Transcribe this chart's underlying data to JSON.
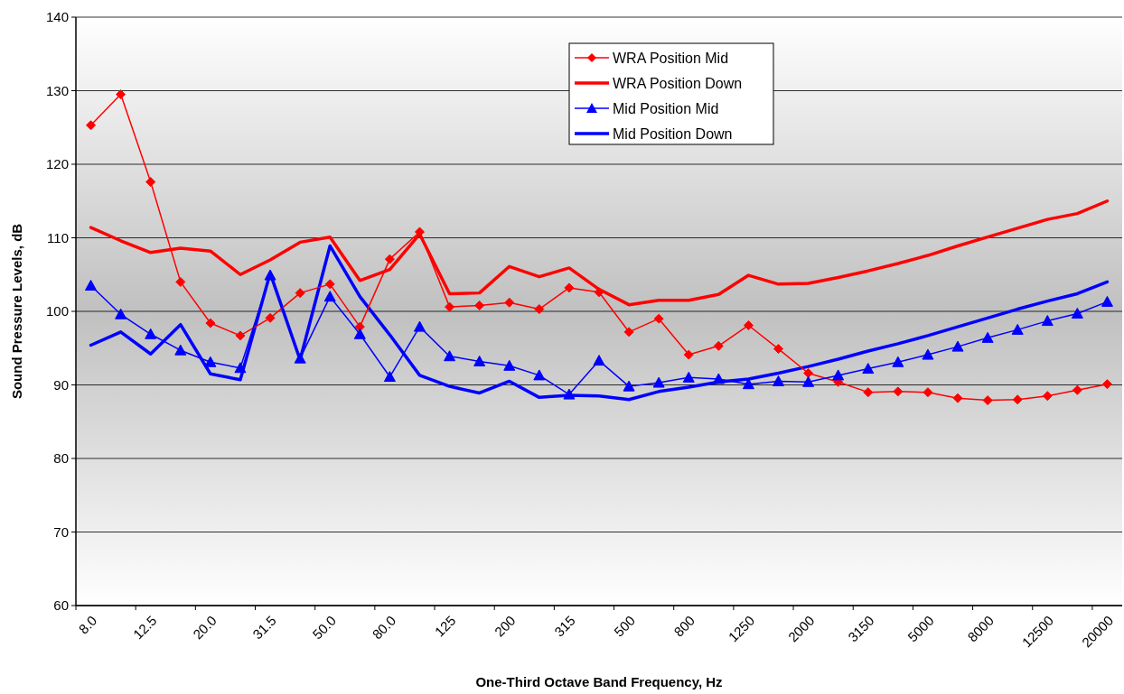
{
  "chart_data": {
    "type": "line",
    "xlabel": "One-Third Octave Band Frequency, Hz",
    "ylabel": "Sound Pressure Levels, dB",
    "categories": [
      "8.0",
      null,
      "12.5",
      null,
      "20.0",
      null,
      "31.5",
      null,
      "50.0",
      null,
      "80.0",
      null,
      "125",
      null,
      "200",
      null,
      "315",
      null,
      "500",
      null,
      "800",
      null,
      "1250",
      null,
      "2000",
      null,
      "3150",
      null,
      "5000",
      null,
      "8000",
      null,
      "12500",
      null,
      "20000"
    ],
    "series": [
      {
        "name": "WRA Position Mid",
        "color": "#ff0000",
        "marker": "diamond",
        "line_style": "solid",
        "values": [
          125.3,
          129.5,
          117.6,
          104.0,
          98.4,
          96.7,
          99.1,
          102.5,
          103.7,
          97.9,
          107.1,
          110.8,
          100.6,
          100.8,
          101.2,
          100.3,
          103.2,
          102.6,
          97.2,
          99.0,
          94.1,
          95.3,
          98.1,
          94.9,
          91.6,
          90.4,
          89.0,
          89.1,
          89.0,
          88.2,
          87.9,
          88.0,
          88.5,
          89.3,
          90.1
        ]
      },
      {
        "name": "WRA Position Down",
        "color": "#ff0000",
        "marker": "none",
        "line_style": "solid",
        "values": [
          111.4,
          109.6,
          108.0,
          108.6,
          108.2,
          105.0,
          107.0,
          109.4,
          110.1,
          104.2,
          105.7,
          110.5,
          102.4,
          102.5,
          106.1,
          104.7,
          105.9,
          103.0,
          100.9,
          101.5,
          101.5,
          102.3,
          104.9,
          103.7,
          103.8,
          104.6,
          105.5,
          106.5,
          107.6,
          108.9,
          110.1,
          111.3,
          112.5,
          113.3,
          115.0
        ]
      },
      {
        "name": "Mid Position Mid",
        "color": "#0000ff",
        "marker": "triangle",
        "line_style": "solid",
        "values": [
          103.5,
          99.6,
          96.9,
          94.7,
          93.1,
          92.3,
          104.9,
          93.6,
          102.0,
          96.9,
          91.1,
          97.9,
          93.9,
          93.2,
          92.6,
          91.3,
          88.7,
          93.3,
          89.8,
          90.3,
          91.0,
          90.8,
          90.1,
          90.5,
          90.4,
          91.3,
          92.2,
          93.1,
          94.1,
          95.2,
          96.4,
          97.5,
          98.7,
          99.7,
          101.3
        ]
      },
      {
        "name": "Mid Position Down",
        "color": "#0000ff",
        "marker": "none",
        "line_style": "solid",
        "values": [
          95.4,
          97.2,
          94.2,
          98.2,
          91.5,
          90.7,
          105.2,
          93.4,
          108.9,
          102.0,
          96.8,
          91.3,
          89.8,
          88.9,
          90.5,
          88.3,
          88.6,
          88.5,
          88.0,
          89.1,
          89.7,
          90.4,
          90.8,
          91.6,
          92.5,
          93.5,
          94.6,
          95.6,
          96.7,
          97.9,
          99.1,
          100.3,
          101.4,
          102.4,
          104.0
        ]
      }
    ],
    "ylim": [
      60,
      140
    ],
    "yticks": [
      60,
      70,
      80,
      90,
      100,
      110,
      120,
      130,
      140
    ],
    "grid": "y",
    "legend": "top"
  }
}
